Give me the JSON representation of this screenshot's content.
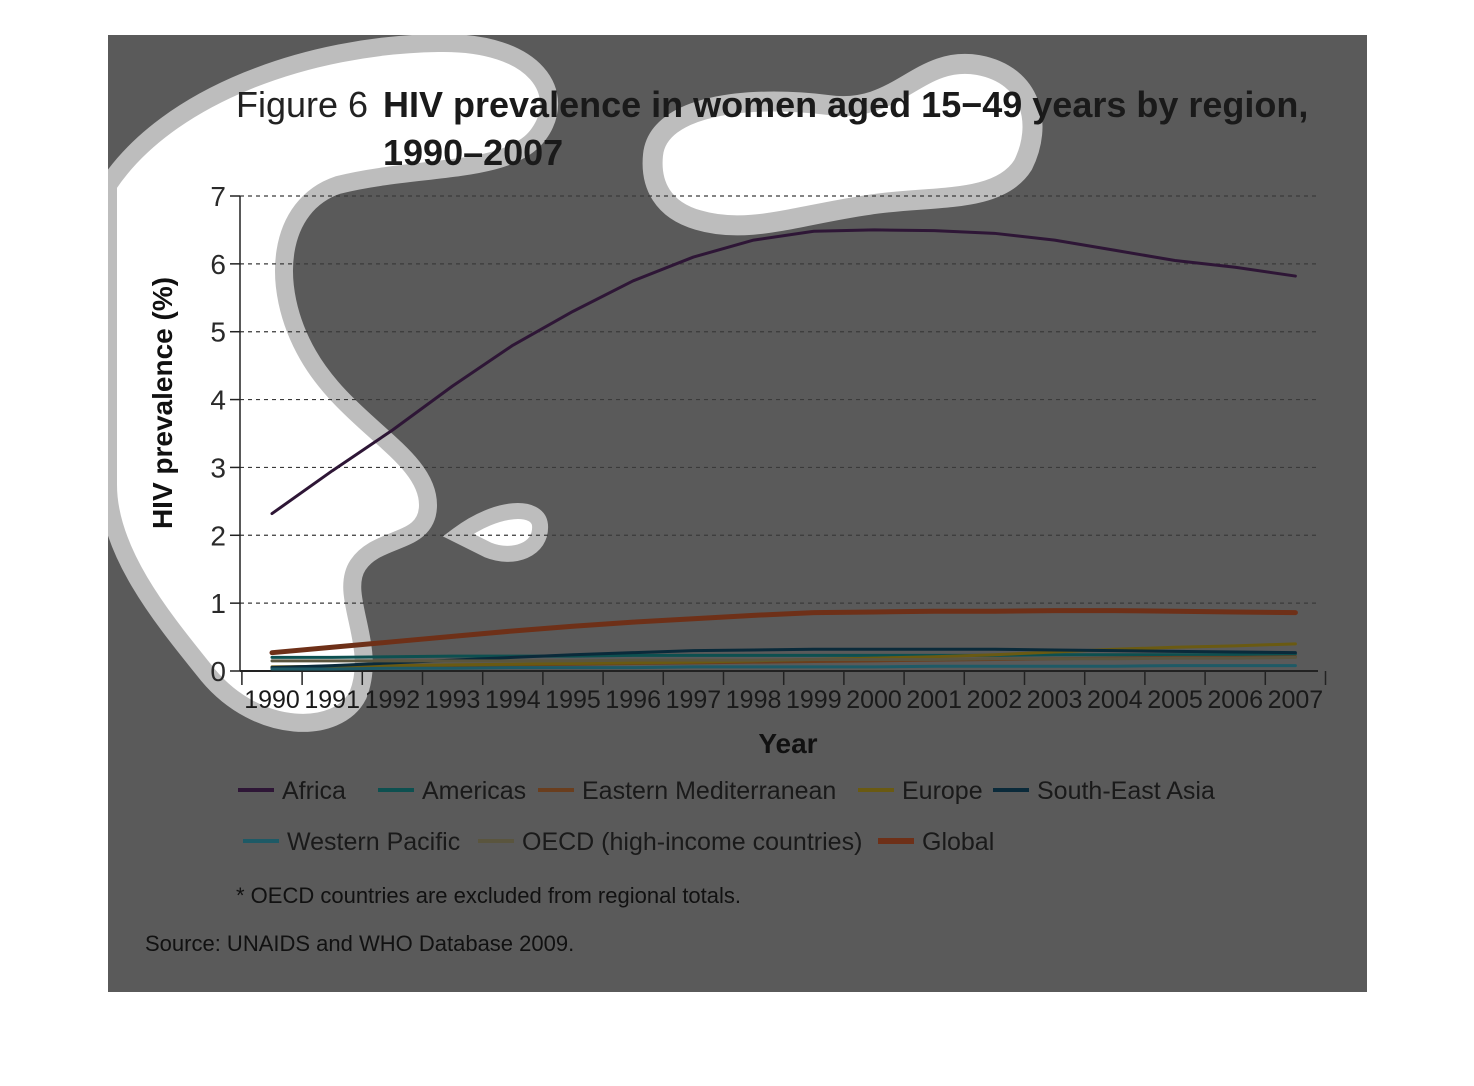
{
  "figure_label": "Figure 6",
  "title_line1": "HIV prevalence in women aged 15−49 years by region,",
  "title_line2": "1990–2007",
  "footnote": "* OECD countries are excluded from regional totals.",
  "source": "Source: UNAIDS and WHO Database 2009.",
  "chart_data": {
    "type": "line",
    "xlabel": "Year",
    "ylabel": "HIV prevalence (%)",
    "ylim": [
      0,
      7
    ],
    "yticks": [
      0,
      1,
      2,
      3,
      4,
      5,
      6,
      7
    ],
    "grid": "horizontal dashed",
    "legend_position": "bottom",
    "x": [
      "1990",
      "1991",
      "1992",
      "1993",
      "1994",
      "1995",
      "1996",
      "1997",
      "1998",
      "1999",
      "2000",
      "2001",
      "2002",
      "2003",
      "2004",
      "2005",
      "2006",
      "2007"
    ],
    "series": [
      {
        "name": "Africa",
        "color": "#2e1636",
        "values": [
          2.32,
          2.95,
          3.55,
          4.2,
          4.8,
          5.3,
          5.75,
          6.1,
          6.35,
          6.48,
          6.5,
          6.49,
          6.45,
          6.35,
          6.2,
          6.05,
          5.95,
          5.82
        ]
      },
      {
        "name": "Americas",
        "color": "#0d5050",
        "values": [
          0.2,
          0.2,
          0.21,
          0.22,
          0.22,
          0.22,
          0.23,
          0.23,
          0.23,
          0.23,
          0.23,
          0.23,
          0.23,
          0.24,
          0.24,
          0.24,
          0.24,
          0.25
        ]
      },
      {
        "name": "Eastern Mediterranean",
        "color": "#6a3e1e",
        "values": [
          0.05,
          0.06,
          0.07,
          0.08,
          0.09,
          0.1,
          0.11,
          0.12,
          0.13,
          0.14,
          0.15,
          0.16,
          0.17,
          0.18,
          0.19,
          0.2,
          0.2,
          0.21
        ]
      },
      {
        "name": "Europe",
        "color": "#6a5a12",
        "values": [
          0.06,
          0.07,
          0.08,
          0.09,
          0.1,
          0.11,
          0.12,
          0.13,
          0.15,
          0.17,
          0.19,
          0.21,
          0.24,
          0.28,
          0.32,
          0.35,
          0.37,
          0.4
        ]
      },
      {
        "name": "South-East Asia",
        "color": "#0a2a3a",
        "values": [
          0.05,
          0.08,
          0.12,
          0.16,
          0.2,
          0.24,
          0.27,
          0.3,
          0.31,
          0.32,
          0.32,
          0.32,
          0.32,
          0.31,
          0.3,
          0.29,
          0.28,
          0.27
        ]
      },
      {
        "name": "Western Pacific",
        "color": "#1e5a66",
        "values": [
          0.03,
          0.03,
          0.04,
          0.04,
          0.05,
          0.05,
          0.05,
          0.06,
          0.06,
          0.06,
          0.06,
          0.07,
          0.07,
          0.07,
          0.07,
          0.08,
          0.08,
          0.08
        ]
      },
      {
        "name": "OECD (high-income countries)",
        "color": "#5a553e",
        "values": [
          0.15,
          0.15,
          0.15,
          0.15,
          0.15,
          0.15,
          0.16,
          0.16,
          0.16,
          0.17,
          0.17,
          0.17,
          0.18,
          0.18,
          0.18,
          0.19,
          0.19,
          0.2
        ]
      },
      {
        "name": "Global",
        "color": "#6e3018",
        "values": [
          0.27,
          0.35,
          0.43,
          0.51,
          0.59,
          0.66,
          0.72,
          0.77,
          0.82,
          0.86,
          0.87,
          0.88,
          0.88,
          0.89,
          0.89,
          0.88,
          0.87,
          0.86
        ]
      }
    ]
  }
}
